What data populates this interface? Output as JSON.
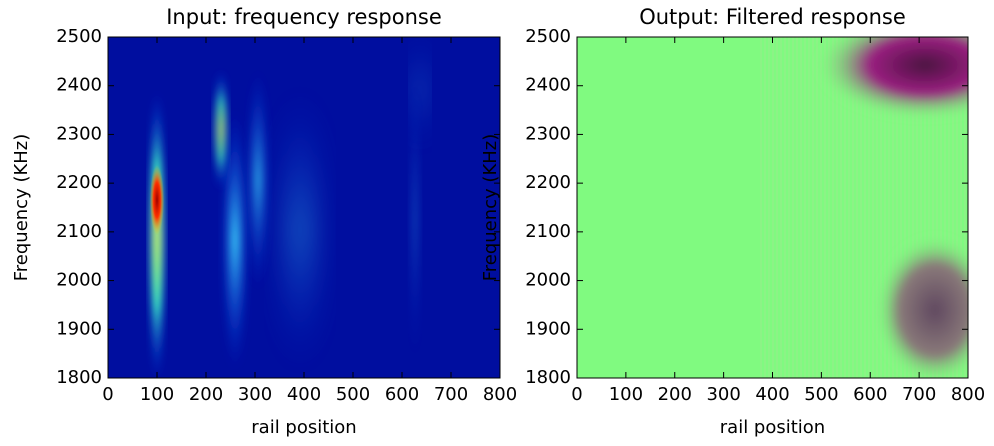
{
  "chart_data": [
    {
      "type": "heatmap",
      "title": "Input: frequency response",
      "x_label": "rail position",
      "y_label": "Frequency (KHz)",
      "xlim": [
        0,
        800
      ],
      "xticks": [
        0,
        100,
        200,
        300,
        400,
        500,
        600,
        700,
        800
      ],
      "ylim": [
        1800,
        2500
      ],
      "yticks": [
        1800,
        1900,
        2000,
        2100,
        2200,
        2300,
        2400,
        2500
      ]
    },
    {
      "type": "heatmap",
      "title": "Output: Filtered response",
      "x_label": "rail position",
      "y_label": "Frequency (KHz)",
      "xlim": [
        0,
        800
      ],
      "xticks": [
        0,
        100,
        200,
        300,
        400,
        500,
        600,
        700,
        800
      ],
      "ylim": [
        1800,
        2500
      ],
      "yticks": [
        1800,
        1900,
        2000,
        2100,
        2200,
        2300,
        2400,
        2500
      ]
    }
  ]
}
